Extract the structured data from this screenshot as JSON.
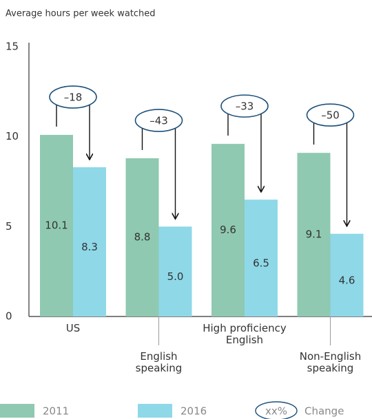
{
  "chart_data": {
    "type": "bar",
    "title": "Average hours per week watched",
    "categories": [
      "US",
      "English speaking",
      "High proficiency English",
      "Non-English speaking"
    ],
    "series": [
      {
        "name": "2011",
        "color": "#8fc9b1",
        "values": [
          10.1,
          8.8,
          9.6,
          9.1
        ],
        "value_labels": [
          "10.1",
          "8.8",
          "9.6",
          "9.1"
        ]
      },
      {
        "name": "2016",
        "color": "#8ed8e8",
        "values": [
          8.3,
          5.0,
          6.5,
          4.6
        ],
        "value_labels": [
          "8.3",
          "5.0",
          "6.5",
          "4.6"
        ]
      }
    ],
    "annotations": [
      "–18",
      "–43",
      "–33",
      "–50"
    ],
    "change_legend": {
      "symbol": "xx%",
      "label": "Change"
    },
    "ylim": [
      0,
      15
    ],
    "yticks": [
      0,
      5,
      10,
      15
    ],
    "grid": false
  }
}
